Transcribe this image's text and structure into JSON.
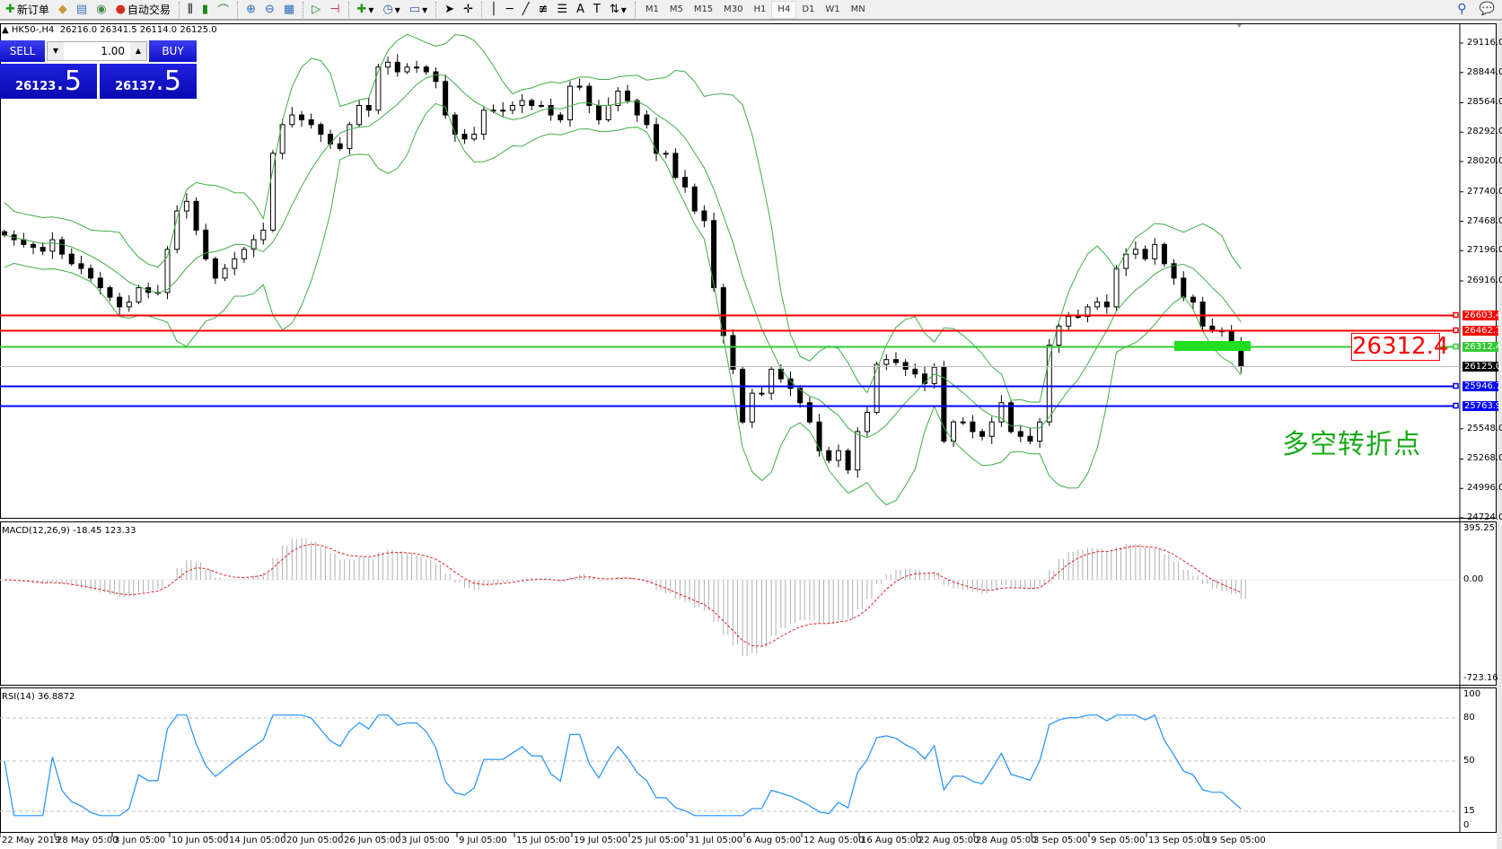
{
  "toolbar": {
    "new_order": "新订单",
    "auto_trading": "自动交易",
    "timeframes": [
      "M1",
      "M5",
      "M15",
      "M30",
      "H1",
      "H4",
      "D1",
      "W1",
      "MN"
    ],
    "active_timeframe": "H4",
    "icons": [
      "bar-chart-icon",
      "candlestick-icon",
      "line-chart-icon",
      "zoom-in-icon",
      "zoom-out-icon",
      "tile-windows-icon",
      "autoscroll-icon",
      "chart-shift-icon",
      "indicators-icon",
      "periods-clock-icon",
      "templates-icon",
      "cursor-icon",
      "crosshair-icon",
      "vertical-line-icon",
      "horizontal-line-icon",
      "trendline-icon",
      "fibonacci-icon",
      "fibo-fan-icon",
      "text-icon",
      "text-label-icon",
      "arrows-icon"
    ]
  },
  "header": {
    "symbol": "HK50-,H4",
    "ohlc": "26216.0 26341.5 26114.0 26125.0"
  },
  "trade_panel": {
    "sell_label": "SELL",
    "buy_label": "BUY",
    "lot": "1.00",
    "sell_price_main": "26123",
    "sell_price_frac": ".5",
    "buy_price_main": "26137",
    "buy_price_frac": ".5"
  },
  "price_axis": [
    "29116.0",
    "28844.0",
    "28564.0",
    "28292.0",
    "28020.0",
    "27740.0",
    "27468.0",
    "27196.0",
    "26916.0",
    "25548.0",
    "25268.0",
    "24996.0",
    "24724.0"
  ],
  "levels": [
    {
      "price": 26603.4,
      "label": "26603.4",
      "color": "#ff0000"
    },
    {
      "price": 26462.1,
      "label": "26462.1",
      "color": "#ff0000"
    },
    {
      "price": 26312.4,
      "label": "26312.4",
      "color": "#33cc33"
    },
    {
      "price": 26125.0,
      "label": "26125.0",
      "color": "#000000"
    },
    {
      "price": 25946.7,
      "label": "25946.7",
      "color": "#0000ff"
    },
    {
      "price": 25763.9,
      "label": "25763.9",
      "color": "#0000ff"
    }
  ],
  "annotation": {
    "big_label": "26312.4",
    "note": "多空转折点"
  },
  "macd": {
    "label": "MACD(12,26,9) -18.45 123.33",
    "axis": [
      "395.25",
      "0.00",
      "-723.16"
    ],
    "max": 395.25,
    "min": -723.16
  },
  "rsi": {
    "label": "RSI(14) 36.8872",
    "axis": [
      "100",
      "80",
      "50",
      "15",
      "0"
    ],
    "levels": [
      80,
      50,
      15
    ]
  },
  "dates": [
    "22 May 2019",
    "28 May 05:00",
    "3 Jun 05:00",
    "10 Jun 05:00",
    "14 Jun 05:00",
    "20 Jun 05:00",
    "26 Jun 05:00",
    "3 Jul 05:00",
    "9 Jul 05:00",
    "15 Jul 05:00",
    "19 Jul 05:00",
    "25 Jul 05:00",
    "31 Jul 05:00",
    "6 Aug 05:00",
    "12 Aug 05:00",
    "16 Aug 05:00",
    "22 Aug 05:00",
    "28 Aug 05:00",
    "3 Sep 05:00",
    "9 Sep 05:00",
    "13 Sep 05:00",
    "19 Sep 05:00"
  ],
  "chart_data": {
    "type": "candlestick",
    "price_range": [
      24724.0,
      29116.0
    ],
    "closes": [
      27341,
      27297,
      27253,
      27226,
      27191,
      27297,
      27164,
      27075,
      27031,
      26942,
      26853,
      26765,
      26676,
      26720,
      26853,
      26809,
      26809,
      27208,
      27563,
      27652,
      27386,
      27120,
      26942,
      27031,
      27120,
      27208,
      27297,
      27386,
      28096,
      28362,
      28451,
      28406,
      28362,
      28273,
      28184,
      28140,
      28362,
      28539,
      28495,
      28894,
      28939,
      28850,
      28894,
      28894,
      28850,
      28761,
      28451,
      28273,
      28229,
      28273,
      28495,
      28495,
      28495,
      28539,
      28584,
      28539,
      28539,
      28451,
      28406,
      28717,
      28717,
      28539,
      28406,
      28539,
      28672,
      28584,
      28451,
      28362,
      28096,
      28096,
      27874,
      27785,
      27563,
      27474,
      26853,
      26410,
      26099,
      25611,
      25877,
      25877,
      26099,
      26010,
      25922,
      25789,
      25611,
      25345,
      25256,
      25345,
      25167,
      25522,
      25700,
      26144,
      26188,
      26161,
      26099,
      26055,
      25966,
      26117,
      25434,
      25611,
      25611,
      25522,
      25478,
      25611,
      25789,
      25522,
      25478,
      25434,
      25611,
      26321,
      26498,
      26587,
      26587,
      26676,
      26720,
      26676,
      27031,
      27164,
      27208,
      27120,
      27253,
      27075,
      26942,
      26765,
      26720,
      26498,
      26454,
      26454,
      26321,
      26125
    ]
  }
}
